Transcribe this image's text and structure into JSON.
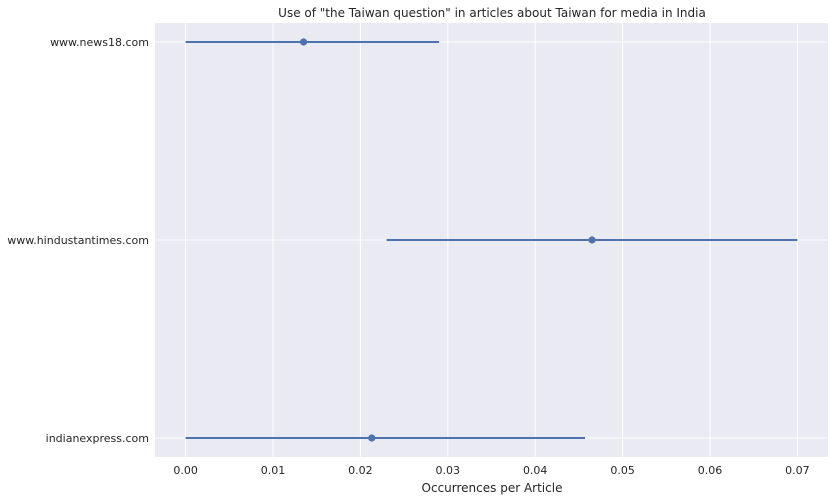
{
  "chart_data": {
    "type": "scatter",
    "title": "Use of \"the Taiwan question\" in articles about Taiwan for media in India",
    "xlabel": "Occurrences per Article",
    "ylabel": "",
    "xlim": [
      -0.0035,
      0.0735
    ],
    "x_ticks": [
      "0.00",
      "0.01",
      "0.02",
      "0.03",
      "0.04",
      "0.05",
      "0.06",
      "0.07"
    ],
    "categories": [
      "www.news18.com",
      "www.hindustantimes.com",
      "indianexpress.com"
    ],
    "points": [
      {
        "category": "www.news18.com",
        "value": 0.0135,
        "ci": [
          0.0,
          0.029
        ]
      },
      {
        "category": "www.hindustantimes.com",
        "value": 0.0465,
        "ci": [
          0.023,
          0.07
        ]
      },
      {
        "category": "indianexpress.com",
        "value": 0.0213,
        "ci": [
          0.0,
          0.0457
        ]
      }
    ],
    "grid": true,
    "colors": {
      "background": "#eaeaf2",
      "grid": "#ffffff",
      "series": "#4c72b0",
      "text": "#262626"
    }
  }
}
